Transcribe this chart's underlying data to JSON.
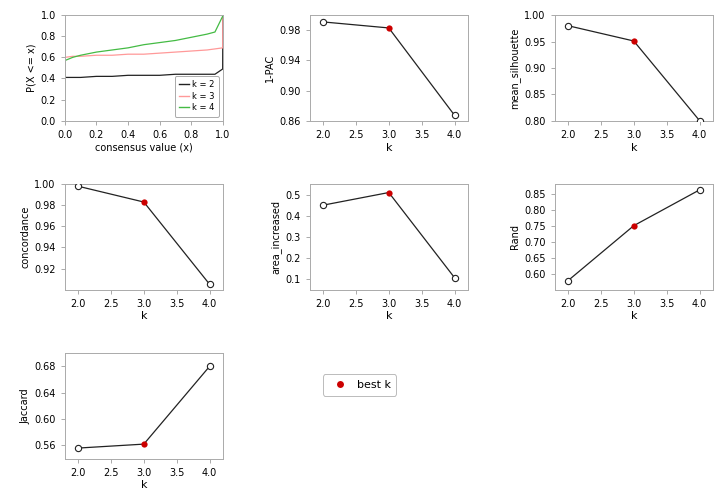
{
  "cdf": {
    "k2": {
      "x": [
        0.0,
        0.001,
        0.05,
        0.1,
        0.2,
        0.3,
        0.4,
        0.5,
        0.6,
        0.7,
        0.8,
        0.9,
        0.95,
        0.999,
        1.0
      ],
      "y": [
        0.0,
        0.41,
        0.41,
        0.41,
        0.42,
        0.42,
        0.43,
        0.43,
        0.43,
        0.44,
        0.44,
        0.44,
        0.44,
        0.49,
        1.0
      ],
      "color": "#222222"
    },
    "k3": {
      "x": [
        0.0,
        0.001,
        0.05,
        0.1,
        0.2,
        0.3,
        0.4,
        0.5,
        0.6,
        0.7,
        0.8,
        0.9,
        0.95,
        0.999,
        1.0
      ],
      "y": [
        0.0,
        0.6,
        0.61,
        0.61,
        0.62,
        0.62,
        0.63,
        0.63,
        0.64,
        0.65,
        0.66,
        0.67,
        0.68,
        0.69,
        1.0
      ],
      "color": "#FF9999"
    },
    "k4": {
      "x": [
        0.0,
        0.001,
        0.05,
        0.1,
        0.2,
        0.3,
        0.4,
        0.5,
        0.6,
        0.7,
        0.8,
        0.9,
        0.95,
        0.999,
        1.0
      ],
      "y": [
        0.0,
        0.57,
        0.6,
        0.62,
        0.65,
        0.67,
        0.69,
        0.72,
        0.74,
        0.76,
        0.79,
        0.82,
        0.84,
        0.99,
        1.0
      ],
      "color": "#44BB44"
    }
  },
  "pac": {
    "k": [
      2,
      3,
      4
    ],
    "values": [
      0.991,
      0.983,
      0.867
    ],
    "best_k": 3,
    "ylabel": "1-PAC",
    "ylim": [
      0.86,
      1.0
    ],
    "yticks": [
      0.86,
      0.9,
      0.94,
      0.98
    ],
    "yticklabels": [
      "0.86",
      "0.90",
      "0.94",
      "0.98"
    ]
  },
  "silhouette": {
    "k": [
      2,
      3,
      4
    ],
    "values": [
      0.98,
      0.951,
      0.8
    ],
    "best_k": 3,
    "ylabel": "mean_silhouette",
    "ylim": [
      0.8,
      1.0
    ],
    "yticks": [
      0.8,
      0.85,
      0.9,
      0.95,
      1.0
    ],
    "yticklabels": [
      "0.80",
      "0.85",
      "0.90",
      "0.95",
      "1.00"
    ]
  },
  "concordance": {
    "k": [
      2,
      3,
      4
    ],
    "values": [
      0.998,
      0.983,
      0.905
    ],
    "best_k": 3,
    "ylabel": "concordance",
    "ylim": [
      0.9,
      1.0
    ],
    "yticks": [
      0.92,
      0.94,
      0.96,
      0.98,
      1.0
    ],
    "yticklabels": [
      "0.92",
      "0.94",
      "0.96",
      "0.98",
      "1.00"
    ]
  },
  "area_increased": {
    "k": [
      2,
      3,
      4
    ],
    "values": [
      0.45,
      0.51,
      0.106
    ],
    "best_k": 3,
    "ylabel": "area_increased",
    "ylim": [
      0.05,
      0.55
    ],
    "yticks": [
      0.1,
      0.2,
      0.3,
      0.4,
      0.5
    ],
    "yticklabels": [
      "0.1",
      "0.2",
      "0.3",
      "0.4",
      "0.5"
    ]
  },
  "rand": {
    "k": [
      2,
      3,
      4
    ],
    "values": [
      0.578,
      0.75,
      0.862
    ],
    "best_k": 3,
    "ylabel": "Rand",
    "ylim": [
      0.55,
      0.88
    ],
    "yticks": [
      0.6,
      0.65,
      0.7,
      0.75,
      0.8,
      0.85
    ],
    "yticklabels": [
      "0.60",
      "0.65",
      "0.70",
      "0.75",
      "0.80",
      "0.85"
    ]
  },
  "jaccard": {
    "k": [
      2,
      3,
      4
    ],
    "values": [
      0.556,
      0.562,
      0.68
    ],
    "best_k": 3,
    "ylabel": "Jaccard",
    "ylim": [
      0.54,
      0.7
    ],
    "yticks": [
      0.56,
      0.6,
      0.64,
      0.68
    ],
    "yticklabels": [
      "0.56",
      "0.60",
      "0.64",
      "0.68"
    ]
  },
  "bg_color": "#FFFFFF",
  "line_color": "#222222",
  "open_dot_color": "#FFFFFF",
  "best_dot_color": "#CC0000",
  "spine_color": "#AAAAAA",
  "font_family": "sans-serif"
}
